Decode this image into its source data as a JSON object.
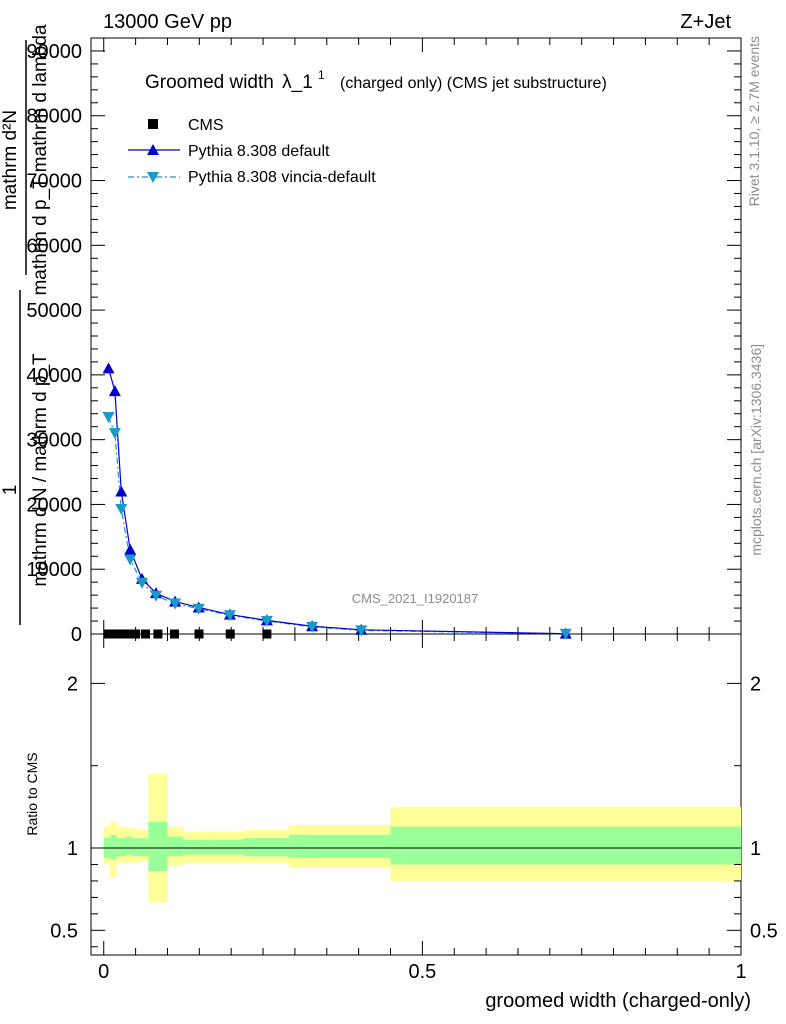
{
  "header": {
    "energy": "13000 GeV pp",
    "process": "Z+Jet"
  },
  "side_text": {
    "rivet": "Rivet 3.1.10, ≥ 2.7M events",
    "mcplots": "mcplots.cern.ch [arXiv:1306.3436]"
  },
  "analysis_id": "CMS_2021_I1920187",
  "legend": {
    "title_main": "Groomed width",
    "title_sym": "λ_1",
    "title_sup": "1",
    "title_rest": "(charged only) (CMS jet substructure)",
    "entries": [
      "CMS",
      "Pythia 8.308 default",
      "Pythia 8.308 vincia-default"
    ]
  },
  "ylabel_top": {
    "num_line1": "mathrm d²N",
    "num_line2": "mathrm d p_T  mathrm d lambda",
    "one": "1",
    "den": "mathrm d N / mathrm d p_T"
  },
  "ylabel_bottom": "Ratio to CMS",
  "xlabel": "groomed width (charged-only)",
  "colors": {
    "cms": "#000000",
    "default": "#0000cc",
    "vincia": "#1a9ac8",
    "band_inner": "#99ff99",
    "band_outer": "#ffff99"
  },
  "chart_data": [
    {
      "type": "line",
      "panel": "main",
      "xlim": [
        -0.02,
        1.0
      ],
      "ylim": [
        0,
        92000
      ],
      "y_ticks": [
        0,
        10000,
        20000,
        30000,
        40000,
        50000,
        60000,
        70000,
        80000,
        90000
      ],
      "y_tick_labels": [
        "0",
        "10000",
        "20000",
        "30000",
        "40000",
        "50000",
        "60000",
        "70000",
        "80000",
        "90000"
      ],
      "series": [
        {
          "name": "CMS",
          "x": [
            0.0075,
            0.0175,
            0.0275,
            0.0375,
            0.05,
            0.0655,
            0.085,
            0.111,
            0.1495,
            0.1985,
            0.256
          ],
          "y": [
            0,
            0,
            0,
            0,
            0,
            0,
            0,
            0,
            0,
            0,
            0
          ]
        },
        {
          "name": "Pythia 8.308 default",
          "x": [
            0.0075,
            0.0175,
            0.0275,
            0.0415,
            0.06,
            0.082,
            0.112,
            0.149,
            0.198,
            0.256,
            0.327,
            0.404,
            0.725
          ],
          "y": [
            41000,
            37500,
            22000,
            13000,
            8500,
            6300,
            5000,
            4100,
            3000,
            2100,
            1200,
            650,
            50
          ]
        },
        {
          "name": "Pythia 8.308 vincia-default",
          "x": [
            0.0075,
            0.0175,
            0.0275,
            0.0415,
            0.06,
            0.082,
            0.112,
            0.149,
            0.198,
            0.256,
            0.327,
            0.404,
            0.725
          ],
          "y": [
            33500,
            31000,
            19300,
            11500,
            7900,
            5900,
            4700,
            3900,
            2900,
            2000,
            1100,
            550,
            40
          ]
        }
      ]
    },
    {
      "type": "area",
      "panel": "ratio",
      "xlim": [
        -0.02,
        1.0
      ],
      "ylim": [
        0.35,
        2.3
      ],
      "y_ticks": [
        0.5,
        1,
        2
      ],
      "y_tick_labels": [
        "0.5",
        "1",
        "2"
      ],
      "x_ticks": [
        0,
        0.5,
        1
      ],
      "x_tick_labels": [
        "0",
        "0.5",
        "1"
      ],
      "bins": [
        {
          "lo": 0.0,
          "hi": 0.01,
          "inner": [
            0.94,
            1.06
          ],
          "outer": [
            0.9,
            1.13
          ]
        },
        {
          "lo": 0.01,
          "hi": 0.02,
          "inner": [
            0.93,
            1.08
          ],
          "outer": [
            0.82,
            1.16
          ]
        },
        {
          "lo": 0.02,
          "hi": 0.035,
          "inner": [
            0.95,
            1.06
          ],
          "outer": [
            0.91,
            1.13
          ]
        },
        {
          "lo": 0.035,
          "hi": 0.045,
          "inner": [
            0.96,
            1.07
          ],
          "outer": [
            0.91,
            1.12
          ]
        },
        {
          "lo": 0.045,
          "hi": 0.055,
          "inner": [
            0.95,
            1.06
          ],
          "outer": [
            0.91,
            1.12
          ]
        },
        {
          "lo": 0.055,
          "hi": 0.07,
          "inner": [
            0.95,
            1.06
          ],
          "outer": [
            0.92,
            1.11
          ]
        },
        {
          "lo": 0.07,
          "hi": 0.1,
          "inner": [
            0.86,
            1.16
          ],
          "outer": [
            0.67,
            1.45
          ]
        },
        {
          "lo": 0.1,
          "hi": 0.125,
          "inner": [
            0.95,
            1.07
          ],
          "outer": [
            0.89,
            1.13
          ]
        },
        {
          "lo": 0.125,
          "hi": 0.175,
          "inner": [
            0.96,
            1.05
          ],
          "outer": [
            0.91,
            1.1
          ]
        },
        {
          "lo": 0.175,
          "hi": 0.22,
          "inner": [
            0.96,
            1.05
          ],
          "outer": [
            0.91,
            1.1
          ]
        },
        {
          "lo": 0.22,
          "hi": 0.29,
          "inner": [
            0.95,
            1.06
          ],
          "outer": [
            0.91,
            1.11
          ]
        },
        {
          "lo": 0.29,
          "hi": 0.45,
          "inner": [
            0.94,
            1.08
          ],
          "outer": [
            0.88,
            1.14
          ]
        },
        {
          "lo": 0.45,
          "hi": 1.0,
          "inner": [
            0.9,
            1.13
          ],
          "outer": [
            0.8,
            1.25
          ]
        }
      ],
      "reference_line": 1
    }
  ]
}
